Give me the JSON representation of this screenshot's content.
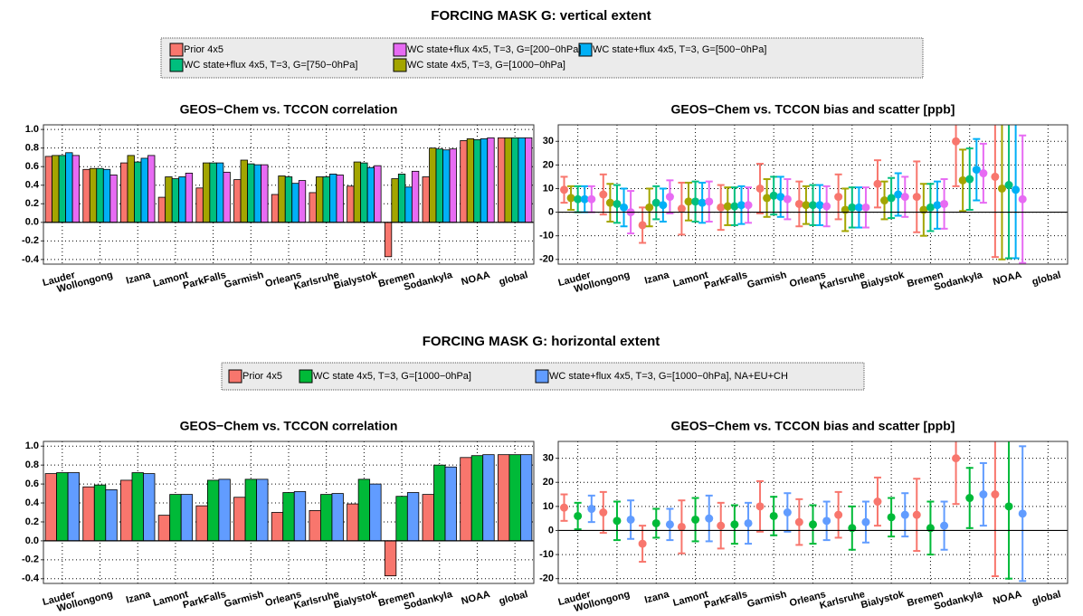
{
  "sections": [
    {
      "title": "FORCING MASK G: vertical extent"
    },
    {
      "title": "FORCING MASK G: horizontal extent"
    }
  ],
  "chart_data": [
    {
      "type": "bar",
      "title": "GEOS−Chem vs. TCCON correlation",
      "categories": [
        "Lauder",
        "Wollongong",
        "Izana",
        "Lamont",
        "ParkFalls",
        "Garmish",
        "Orleans",
        "Karlsruhe",
        "Bialystok",
        "Bremen",
        "Sodankyla",
        "NOAA",
        "global"
      ],
      "ylim": [
        -0.45,
        1.05
      ],
      "yticks": [
        -0.4,
        -0.2,
        {
          "value": 0,
          "label": "0.0"
        },
        0.2,
        0.4,
        0.6,
        0.8,
        {
          "value": 1,
          "label": "1.0"
        }
      ],
      "grid": true,
      "series": [
        {
          "name": "Prior 4x5",
          "color": "#f8766d",
          "values": [
            0.71,
            0.57,
            0.64,
            0.27,
            0.37,
            0.46,
            0.3,
            0.32,
            0.39,
            -0.37,
            0.49,
            0.88,
            0.91
          ]
        },
        {
          "name": "WC state 4x5, T=3,  G=[1000−0hPa]",
          "color": "#a3a500",
          "values": [
            0.72,
            0.58,
            0.72,
            0.49,
            0.64,
            0.67,
            0.5,
            0.49,
            0.65,
            0.47,
            0.8,
            0.9,
            0.91
          ]
        },
        {
          "name": "WC state+flux 4x5, T=3,  G=[750−0hPa]",
          "color": "#00bf7d",
          "values": [
            0.72,
            0.58,
            0.65,
            0.47,
            0.64,
            0.63,
            0.49,
            0.49,
            0.64,
            0.52,
            0.79,
            0.89,
            0.91
          ]
        },
        {
          "name": "WC state+flux 4x5, T=3,  G=[500−0hPa]",
          "color": "#00b0f6",
          "values": [
            0.75,
            0.57,
            0.69,
            0.49,
            0.64,
            0.62,
            0.42,
            0.52,
            0.59,
            0.38,
            0.78,
            0.9,
            0.91
          ]
        },
        {
          "name": "WC state+flux 4x5, T=3,  G=[200−0hPa]",
          "color": "#e76bf3",
          "values": [
            0.72,
            0.51,
            0.72,
            0.53,
            0.54,
            0.62,
            0.45,
            0.51,
            0.61,
            0.55,
            0.79,
            0.91,
            0.91
          ]
        }
      ]
    },
    {
      "type": "errorbar",
      "title": "GEOS−Chem vs. TCCON bias and scatter [ppb]",
      "categories": [
        "Lauder",
        "Wollongong",
        "Izana",
        "Lamont",
        "ParkFalls",
        "Garmish",
        "Orleans",
        "Karlsruhe",
        "Bialystok",
        "Bremen",
        "Sodankyla",
        "NOAA",
        "global"
      ],
      "ylim": [
        -22,
        37
      ],
      "yticks": [
        -20,
        -10,
        0,
        10,
        20,
        30
      ],
      "grid": true,
      "series": [
        {
          "color": "#f8766d",
          "values": [
            9.5,
            7.5,
            -5.5,
            1.5,
            2,
            10,
            3.5,
            6.5,
            12,
            6.5,
            30,
            15,
            null
          ],
          "errors": [
            5.5,
            8.5,
            7.5,
            11,
            9.5,
            10.5,
            9.5,
            9.5,
            10,
            15,
            19,
            34,
            null
          ]
        },
        {
          "color": "#a3a500",
          "values": [
            6,
            4,
            2,
            4.5,
            2.5,
            6,
            3,
            1,
            5,
            1,
            13.5,
            10,
            null
          ],
          "errors": [
            5,
            8,
            8,
            8,
            8,
            8,
            8,
            9,
            8,
            11,
            13,
            30,
            null
          ]
        },
        {
          "color": "#00bf7d",
          "values": [
            5.5,
            3.5,
            4,
            4.5,
            2.5,
            7,
            3,
            2,
            6,
            2,
            14,
            11.5,
            null
          ],
          "errors": [
            5.5,
            8,
            7,
            8.5,
            8,
            8,
            8.5,
            8.5,
            8.5,
            10,
            13,
            31,
            null
          ]
        },
        {
          "color": "#00b0f6",
          "values": [
            5.5,
            2,
            3,
            4,
            3,
            6.5,
            3,
            2,
            7.5,
            3,
            18,
            9.5,
            null
          ],
          "errors": [
            5.5,
            8,
            7,
            8.5,
            8,
            8.5,
            8.5,
            8.5,
            9,
            10,
            13,
            29,
            null
          ]
        },
        {
          "color": "#e76bf3",
          "values": [
            5.5,
            0,
            6.5,
            4.5,
            3,
            5.5,
            2.5,
            2,
            6.5,
            3.5,
            16.5,
            5.5,
            null
          ],
          "errors": [
            5.5,
            9,
            7,
            8.5,
            7.5,
            8.5,
            8.5,
            8.5,
            8.5,
            10.5,
            12.5,
            27,
            null
          ]
        }
      ]
    },
    {
      "type": "bar",
      "title": "GEOS−Chem vs. TCCON correlation",
      "categories": [
        "Lauder",
        "Wollongong",
        "Izana",
        "Lamont",
        "ParkFalls",
        "Garmish",
        "Orleans",
        "Karlsruhe",
        "Bialystok",
        "Bremen",
        "Sodankyla",
        "NOAA",
        "global"
      ],
      "ylim": [
        -0.45,
        1.05
      ],
      "yticks": [
        -0.4,
        -0.2,
        {
          "value": 0,
          "label": "0.0"
        },
        0.2,
        0.4,
        0.6,
        0.8,
        {
          "value": 1,
          "label": "1.0"
        }
      ],
      "grid": true,
      "series": [
        {
          "name": "Prior 4x5",
          "color": "#f8766d",
          "values": [
            0.71,
            0.57,
            0.64,
            0.27,
            0.37,
            0.46,
            0.3,
            0.32,
            0.39,
            -0.37,
            0.49,
            0.88,
            0.91
          ]
        },
        {
          "name": "WC state 4x5, T=3,  G=[1000−0hPa]",
          "color": "#00ba38",
          "values": [
            0.72,
            0.59,
            0.72,
            0.49,
            0.64,
            0.65,
            0.51,
            0.49,
            0.65,
            0.47,
            0.8,
            0.9,
            0.91
          ]
        },
        {
          "name": "WC state+flux 4x5, T=3,  G=[1000−0hPa], NA+EU+CH",
          "color": "#619cff",
          "values": [
            0.72,
            0.54,
            0.71,
            0.49,
            0.65,
            0.65,
            0.52,
            0.5,
            0.6,
            0.51,
            0.78,
            0.91,
            0.91
          ]
        }
      ]
    },
    {
      "type": "errorbar",
      "title": "GEOS−Chem vs. TCCON bias and scatter [ppb]",
      "categories": [
        "Lauder",
        "Wollongong",
        "Izana",
        "Lamont",
        "ParkFalls",
        "Garmish",
        "Orleans",
        "Karlsruhe",
        "Bialystok",
        "Bremen",
        "Sodankyla",
        "NOAA",
        "global"
      ],
      "ylim": [
        -22,
        37
      ],
      "yticks": [
        -20,
        -10,
        0,
        10,
        20,
        30
      ],
      "grid": true,
      "series": [
        {
          "color": "#f8766d",
          "values": [
            9.5,
            7.5,
            -5.5,
            1.5,
            2,
            10,
            3.5,
            6.5,
            12,
            6.5,
            30,
            15,
            null
          ],
          "errors": [
            5.5,
            8.5,
            7.5,
            11,
            9.5,
            10.5,
            9.5,
            9.5,
            10,
            15,
            19,
            34,
            null
          ]
        },
        {
          "color": "#00ba38",
          "values": [
            6,
            4,
            3,
            4.5,
            2.5,
            6,
            2.5,
            1,
            5.5,
            1,
            13.5,
            10,
            null
          ],
          "errors": [
            5.5,
            8,
            6,
            9,
            8,
            8,
            8,
            9,
            8,
            11,
            12.5,
            30,
            null
          ]
        },
        {
          "color": "#619cff",
          "values": [
            9,
            4.5,
            2.5,
            5,
            3,
            7.5,
            4,
            3.5,
            6.5,
            2,
            15,
            7,
            null
          ],
          "errors": [
            5.5,
            8,
            6.5,
            9.5,
            8.5,
            8,
            8,
            8.5,
            9,
            10,
            13,
            28,
            null
          ]
        }
      ]
    }
  ]
}
